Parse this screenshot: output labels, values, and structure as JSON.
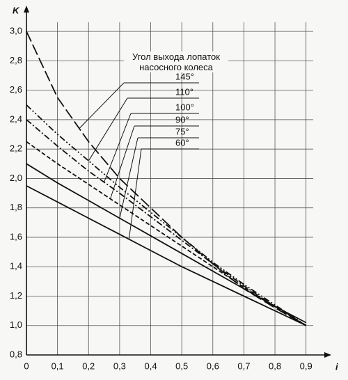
{
  "chart_data": {
    "type": "line",
    "xlabel": "i",
    "ylabel": "K",
    "legend_title": "Угол выхода лопаток насосного колеса",
    "x": [
      0,
      0.1,
      0.2,
      0.3,
      0.4,
      0.5,
      0.6,
      0.7,
      0.8,
      0.9
    ],
    "series": [
      {
        "name": "145°",
        "color": "#111111",
        "style": "long-dash",
        "values": [
          3.0,
          2.55,
          2.25,
          2.0,
          1.8,
          1.6,
          1.42,
          1.25,
          1.12,
          1.0
        ]
      },
      {
        "name": "110°",
        "color": "#111111",
        "style": "dash-dot-dot",
        "values": [
          2.5,
          2.3,
          2.12,
          1.94,
          1.77,
          1.6,
          1.43,
          1.28,
          1.14,
          1.0
        ]
      },
      {
        "name": "100°",
        "color": "#111111",
        "style": "dash-dot",
        "values": [
          2.4,
          2.22,
          2.05,
          1.9,
          1.74,
          1.58,
          1.42,
          1.27,
          1.13,
          1.0
        ]
      },
      {
        "name": "90°",
        "color": "#111111",
        "style": "dash",
        "values": [
          2.25,
          2.1,
          1.96,
          1.82,
          1.68,
          1.54,
          1.4,
          1.26,
          1.13,
          1.0
        ]
      },
      {
        "name": "75°",
        "color": "#111111",
        "style": "solid",
        "values": [
          2.1,
          1.97,
          1.85,
          1.73,
          1.61,
          1.49,
          1.37,
          1.25,
          1.13,
          1.02
        ]
      },
      {
        "name": "60°",
        "color": "#111111",
        "style": "solid",
        "values": [
          1.95,
          1.84,
          1.73,
          1.62,
          1.51,
          1.4,
          1.3,
          1.2,
          1.1,
          1.0
        ]
      }
    ],
    "xlim": [
      0,
      0.95
    ],
    "ylim": [
      0.8,
      3.1
    ],
    "xticks": [
      0,
      {
        "value": 0.1,
        "label": "0,1"
      },
      {
        "value": 0.2,
        "label": "0,2"
      },
      {
        "value": 0.3,
        "label": "0,3"
      },
      {
        "value": 0.4,
        "label": "0,4"
      },
      {
        "value": 0.5,
        "label": "0,5"
      },
      {
        "value": 0.6,
        "label": "0,6"
      },
      {
        "value": 0.7,
        "label": "0,7"
      },
      {
        "value": 0.8,
        "label": "0,8"
      },
      {
        "value": 0.9,
        "label": "0,9"
      }
    ],
    "yticks": [
      {
        "value": 0.8,
        "label": "0,8"
      },
      {
        "value": 1.0,
        "label": "1,0"
      },
      {
        "value": 1.2,
        "label": "1,2"
      },
      {
        "value": 1.4,
        "label": "1,4"
      },
      {
        "value": 1.6,
        "label": "1,6"
      },
      {
        "value": 1.8,
        "label": "1,8"
      },
      {
        "value": 2.0,
        "label": "2,0"
      },
      {
        "value": 2.2,
        "label": "2,2"
      },
      {
        "value": 2.4,
        "label": "2,4"
      },
      {
        "value": 2.6,
        "label": "2,6"
      },
      {
        "value": 2.8,
        "label": "2,8"
      },
      {
        "value": 3.0,
        "label": "3,0"
      }
    ],
    "grid": true
  }
}
